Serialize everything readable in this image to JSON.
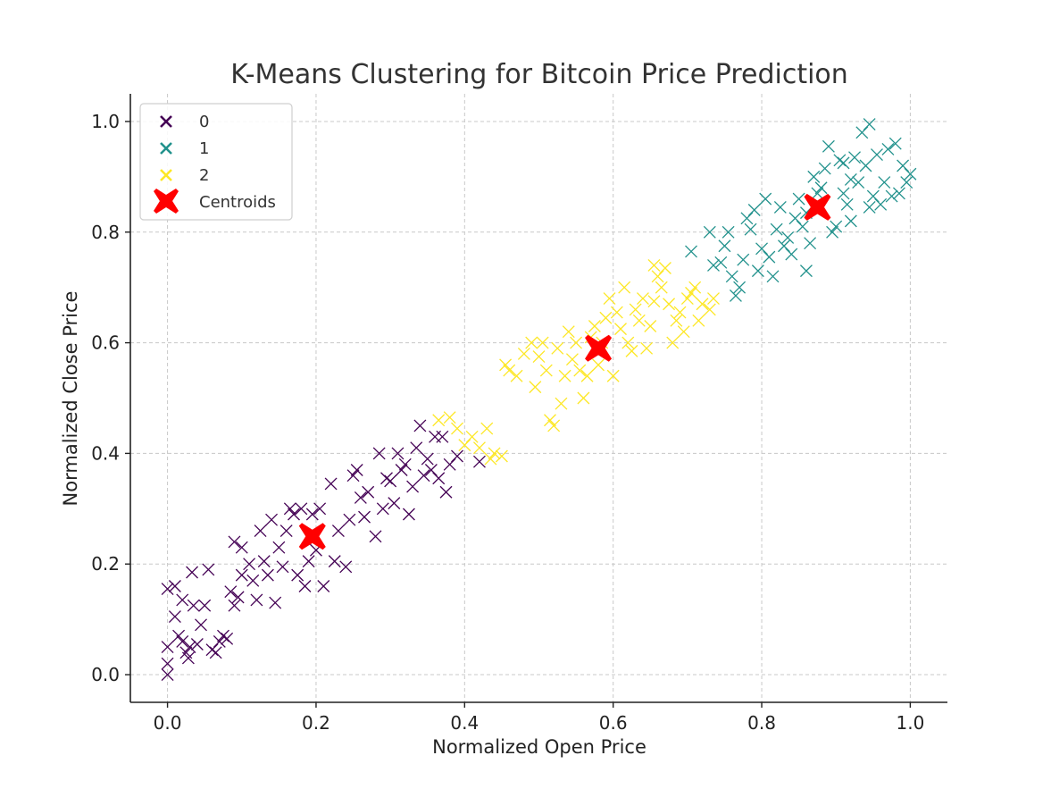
{
  "chart_data": {
    "type": "scatter",
    "title": "K-Means Clustering for Bitcoin Price Prediction",
    "xlabel": "Normalized Open Price",
    "ylabel": "Normalized Close Price",
    "xlim": [
      -0.05,
      1.05
    ],
    "ylim": [
      -0.05,
      1.05
    ],
    "xticks": [
      "0.0",
      "0.2",
      "0.4",
      "0.6",
      "0.8",
      "1.0"
    ],
    "yticks": [
      "0.0",
      "0.2",
      "0.4",
      "0.6",
      "0.8",
      "1.0"
    ],
    "grid": true,
    "legend_position": "top-left",
    "marker": "x",
    "series": [
      {
        "name": "0",
        "color": "#440154",
        "points": [
          [
            0.0,
            0.0
          ],
          [
            0.0,
            0.02
          ],
          [
            0.0,
            0.05
          ],
          [
            0.0,
            0.155
          ],
          [
            0.01,
            0.16
          ],
          [
            0.01,
            0.105
          ],
          [
            0.015,
            0.07
          ],
          [
            0.02,
            0.06
          ],
          [
            0.02,
            0.135
          ],
          [
            0.025,
            0.04
          ],
          [
            0.028,
            0.03
          ],
          [
            0.03,
            0.05
          ],
          [
            0.033,
            0.185
          ],
          [
            0.035,
            0.125
          ],
          [
            0.04,
            0.055
          ],
          [
            0.045,
            0.09
          ],
          [
            0.05,
            0.125
          ],
          [
            0.055,
            0.19
          ],
          [
            0.06,
            0.045
          ],
          [
            0.065,
            0.04
          ],
          [
            0.07,
            0.06
          ],
          [
            0.075,
            0.07
          ],
          [
            0.08,
            0.065
          ],
          [
            0.085,
            0.15
          ],
          [
            0.09,
            0.125
          ],
          [
            0.09,
            0.24
          ],
          [
            0.095,
            0.14
          ],
          [
            0.1,
            0.23
          ],
          [
            0.1,
            0.18
          ],
          [
            0.11,
            0.2
          ],
          [
            0.115,
            0.17
          ],
          [
            0.12,
            0.135
          ],
          [
            0.125,
            0.26
          ],
          [
            0.13,
            0.205
          ],
          [
            0.135,
            0.18
          ],
          [
            0.14,
            0.28
          ],
          [
            0.145,
            0.13
          ],
          [
            0.15,
            0.23
          ],
          [
            0.155,
            0.195
          ],
          [
            0.16,
            0.26
          ],
          [
            0.165,
            0.3
          ],
          [
            0.17,
            0.29
          ],
          [
            0.175,
            0.18
          ],
          [
            0.18,
            0.3
          ],
          [
            0.185,
            0.16
          ],
          [
            0.19,
            0.205
          ],
          [
            0.195,
            0.29
          ],
          [
            0.2,
            0.225
          ],
          [
            0.205,
            0.3
          ],
          [
            0.21,
            0.16
          ],
          [
            0.22,
            0.345
          ],
          [
            0.225,
            0.205
          ],
          [
            0.23,
            0.26
          ],
          [
            0.24,
            0.195
          ],
          [
            0.245,
            0.28
          ],
          [
            0.25,
            0.36
          ],
          [
            0.255,
            0.37
          ],
          [
            0.26,
            0.32
          ],
          [
            0.265,
            0.285
          ],
          [
            0.27,
            0.33
          ],
          [
            0.28,
            0.25
          ],
          [
            0.285,
            0.4
          ],
          [
            0.29,
            0.3
          ],
          [
            0.295,
            0.355
          ],
          [
            0.3,
            0.35
          ],
          [
            0.305,
            0.31
          ],
          [
            0.31,
            0.4
          ],
          [
            0.315,
            0.37
          ],
          [
            0.32,
            0.38
          ],
          [
            0.325,
            0.29
          ],
          [
            0.33,
            0.34
          ],
          [
            0.335,
            0.41
          ],
          [
            0.34,
            0.45
          ],
          [
            0.345,
            0.36
          ],
          [
            0.35,
            0.39
          ],
          [
            0.355,
            0.37
          ],
          [
            0.36,
            0.43
          ],
          [
            0.365,
            0.355
          ],
          [
            0.37,
            0.43
          ],
          [
            0.375,
            0.33
          ],
          [
            0.38,
            0.38
          ],
          [
            0.39,
            0.395
          ],
          [
            0.42,
            0.385
          ]
        ]
      },
      {
        "name": "1",
        "color": "#21918c",
        "points": [
          [
            0.705,
            0.765
          ],
          [
            0.73,
            0.8
          ],
          [
            0.735,
            0.74
          ],
          [
            0.745,
            0.745
          ],
          [
            0.75,
            0.775
          ],
          [
            0.755,
            0.8
          ],
          [
            0.76,
            0.72
          ],
          [
            0.765,
            0.685
          ],
          [
            0.77,
            0.7
          ],
          [
            0.775,
            0.75
          ],
          [
            0.78,
            0.825
          ],
          [
            0.785,
            0.805
          ],
          [
            0.79,
            0.84
          ],
          [
            0.795,
            0.73
          ],
          [
            0.8,
            0.77
          ],
          [
            0.805,
            0.86
          ],
          [
            0.81,
            0.755
          ],
          [
            0.815,
            0.72
          ],
          [
            0.82,
            0.805
          ],
          [
            0.825,
            0.845
          ],
          [
            0.83,
            0.775
          ],
          [
            0.835,
            0.79
          ],
          [
            0.84,
            0.76
          ],
          [
            0.845,
            0.825
          ],
          [
            0.85,
            0.86
          ],
          [
            0.855,
            0.81
          ],
          [
            0.86,
            0.835
          ],
          [
            0.865,
            0.78
          ],
          [
            0.87,
            0.9
          ],
          [
            0.875,
            0.87
          ],
          [
            0.88,
            0.88
          ],
          [
            0.885,
            0.915
          ],
          [
            0.89,
            0.955
          ],
          [
            0.895,
            0.8
          ],
          [
            0.9,
            0.81
          ],
          [
            0.905,
            0.93
          ],
          [
            0.91,
            0.87
          ],
          [
            0.915,
            0.85
          ],
          [
            0.92,
            0.895
          ],
          [
            0.925,
            0.935
          ],
          [
            0.93,
            0.89
          ],
          [
            0.935,
            0.98
          ],
          [
            0.94,
            0.92
          ],
          [
            0.945,
            0.995
          ],
          [
            0.95,
            0.865
          ],
          [
            0.955,
            0.94
          ],
          [
            0.96,
            0.85
          ],
          [
            0.965,
            0.89
          ],
          [
            0.97,
            0.95
          ],
          [
            0.975,
            0.865
          ],
          [
            0.98,
            0.96
          ],
          [
            0.985,
            0.87
          ],
          [
            0.99,
            0.92
          ],
          [
            0.995,
            0.89
          ],
          [
            1.0,
            0.905
          ],
          [
            0.92,
            0.82
          ],
          [
            0.86,
            0.73
          ],
          [
            0.945,
            0.845
          ],
          [
            0.91,
            0.925
          ]
        ]
      },
      {
        "name": "2",
        "color": "#fde725",
        "points": [
          [
            0.365,
            0.46
          ],
          [
            0.38,
            0.465
          ],
          [
            0.39,
            0.445
          ],
          [
            0.4,
            0.415
          ],
          [
            0.41,
            0.43
          ],
          [
            0.42,
            0.41
          ],
          [
            0.43,
            0.445
          ],
          [
            0.435,
            0.39
          ],
          [
            0.44,
            0.4
          ],
          [
            0.45,
            0.395
          ],
          [
            0.455,
            0.56
          ],
          [
            0.46,
            0.55
          ],
          [
            0.47,
            0.54
          ],
          [
            0.48,
            0.58
          ],
          [
            0.49,
            0.6
          ],
          [
            0.495,
            0.52
          ],
          [
            0.5,
            0.575
          ],
          [
            0.505,
            0.6
          ],
          [
            0.51,
            0.55
          ],
          [
            0.515,
            0.46
          ],
          [
            0.52,
            0.45
          ],
          [
            0.525,
            0.59
          ],
          [
            0.53,
            0.49
          ],
          [
            0.535,
            0.54
          ],
          [
            0.54,
            0.62
          ],
          [
            0.545,
            0.57
          ],
          [
            0.55,
            0.6
          ],
          [
            0.555,
            0.55
          ],
          [
            0.56,
            0.5
          ],
          [
            0.565,
            0.54
          ],
          [
            0.57,
            0.61
          ],
          [
            0.575,
            0.63
          ],
          [
            0.58,
            0.56
          ],
          [
            0.585,
            0.6
          ],
          [
            0.59,
            0.645
          ],
          [
            0.595,
            0.68
          ],
          [
            0.6,
            0.54
          ],
          [
            0.605,
            0.655
          ],
          [
            0.61,
            0.625
          ],
          [
            0.615,
            0.7
          ],
          [
            0.62,
            0.6
          ],
          [
            0.625,
            0.585
          ],
          [
            0.63,
            0.66
          ],
          [
            0.635,
            0.64
          ],
          [
            0.64,
            0.68
          ],
          [
            0.645,
            0.59
          ],
          [
            0.65,
            0.63
          ],
          [
            0.655,
            0.675
          ],
          [
            0.66,
            0.72
          ],
          [
            0.665,
            0.7
          ],
          [
            0.67,
            0.735
          ],
          [
            0.675,
            0.67
          ],
          [
            0.68,
            0.6
          ],
          [
            0.685,
            0.64
          ],
          [
            0.69,
            0.655
          ],
          [
            0.695,
            0.62
          ],
          [
            0.7,
            0.68
          ],
          [
            0.705,
            0.69
          ],
          [
            0.71,
            0.7
          ],
          [
            0.715,
            0.64
          ],
          [
            0.72,
            0.67
          ],
          [
            0.73,
            0.66
          ],
          [
            0.735,
            0.68
          ],
          [
            0.655,
            0.74
          ]
        ]
      }
    ],
    "centroids": {
      "name": "Centroids",
      "color": "#ff0000",
      "points": [
        [
          0.195,
          0.25
        ],
        [
          0.58,
          0.59
        ],
        [
          0.875,
          0.845
        ]
      ]
    }
  }
}
